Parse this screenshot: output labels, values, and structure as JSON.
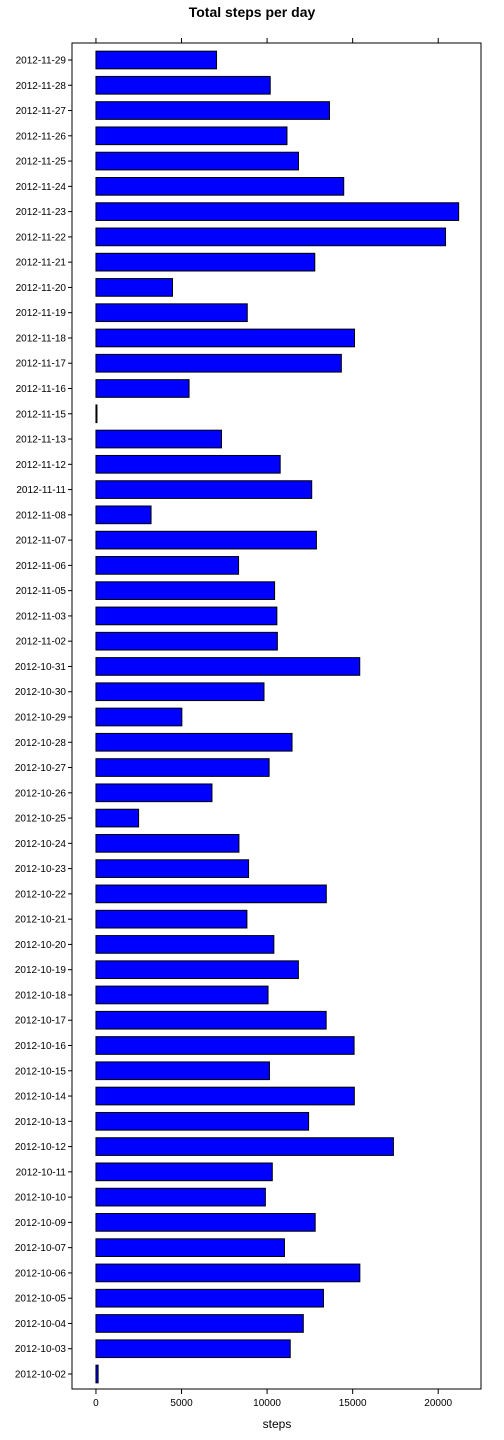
{
  "chart_data": {
    "type": "bar",
    "orientation": "horizontal",
    "title": "Total steps per day",
    "xlabel": "steps",
    "ylabel": "",
    "xlim": [
      -1400,
      22500
    ],
    "x_ticks": [
      0,
      5000,
      10000,
      15000,
      20000
    ],
    "x_tick_labels": [
      "0",
      "5000",
      "10000",
      "15000",
      "20000"
    ],
    "grid": false,
    "legend": "none",
    "bar_color": "#0000ff",
    "bar_edge_color": "#000000",
    "categories": [
      "2012-11-29",
      "2012-11-28",
      "2012-11-27",
      "2012-11-26",
      "2012-11-25",
      "2012-11-24",
      "2012-11-23",
      "2012-11-22",
      "2012-11-21",
      "2012-11-20",
      "2012-11-19",
      "2012-11-18",
      "2012-11-17",
      "2012-11-16",
      "2012-11-15",
      "2012-11-13",
      "2012-11-12",
      "2012-11-11",
      "2012-11-08",
      "2012-11-07",
      "2012-11-06",
      "2012-11-05",
      "2012-11-03",
      "2012-11-02",
      "2012-10-31",
      "2012-10-30",
      "2012-10-29",
      "2012-10-28",
      "2012-10-27",
      "2012-10-26",
      "2012-10-25",
      "2012-10-24",
      "2012-10-23",
      "2012-10-22",
      "2012-10-21",
      "2012-10-20",
      "2012-10-19",
      "2012-10-18",
      "2012-10-17",
      "2012-10-16",
      "2012-10-15",
      "2012-10-14",
      "2012-10-13",
      "2012-10-12",
      "2012-10-11",
      "2012-10-10",
      "2012-10-09",
      "2012-10-07",
      "2012-10-06",
      "2012-10-05",
      "2012-10-04",
      "2012-10-03",
      "2012-10-02"
    ],
    "values": [
      7047,
      10183,
      13646,
      11162,
      11834,
      14478,
      21194,
      20427,
      12787,
      4472,
      8841,
      15110,
      14339,
      5441,
      41,
      7336,
      10765,
      12608,
      3219,
      12883,
      8334,
      10439,
      10571,
      10600,
      15414,
      9819,
      5018,
      11458,
      10119,
      6778,
      2492,
      8355,
      8918,
      13460,
      8821,
      10395,
      11829,
      10056,
      13452,
      15084,
      10139,
      15098,
      12426,
      17382,
      10304,
      9900,
      12811,
      11015,
      15420,
      13294,
      12116,
      11352,
      126
    ]
  }
}
